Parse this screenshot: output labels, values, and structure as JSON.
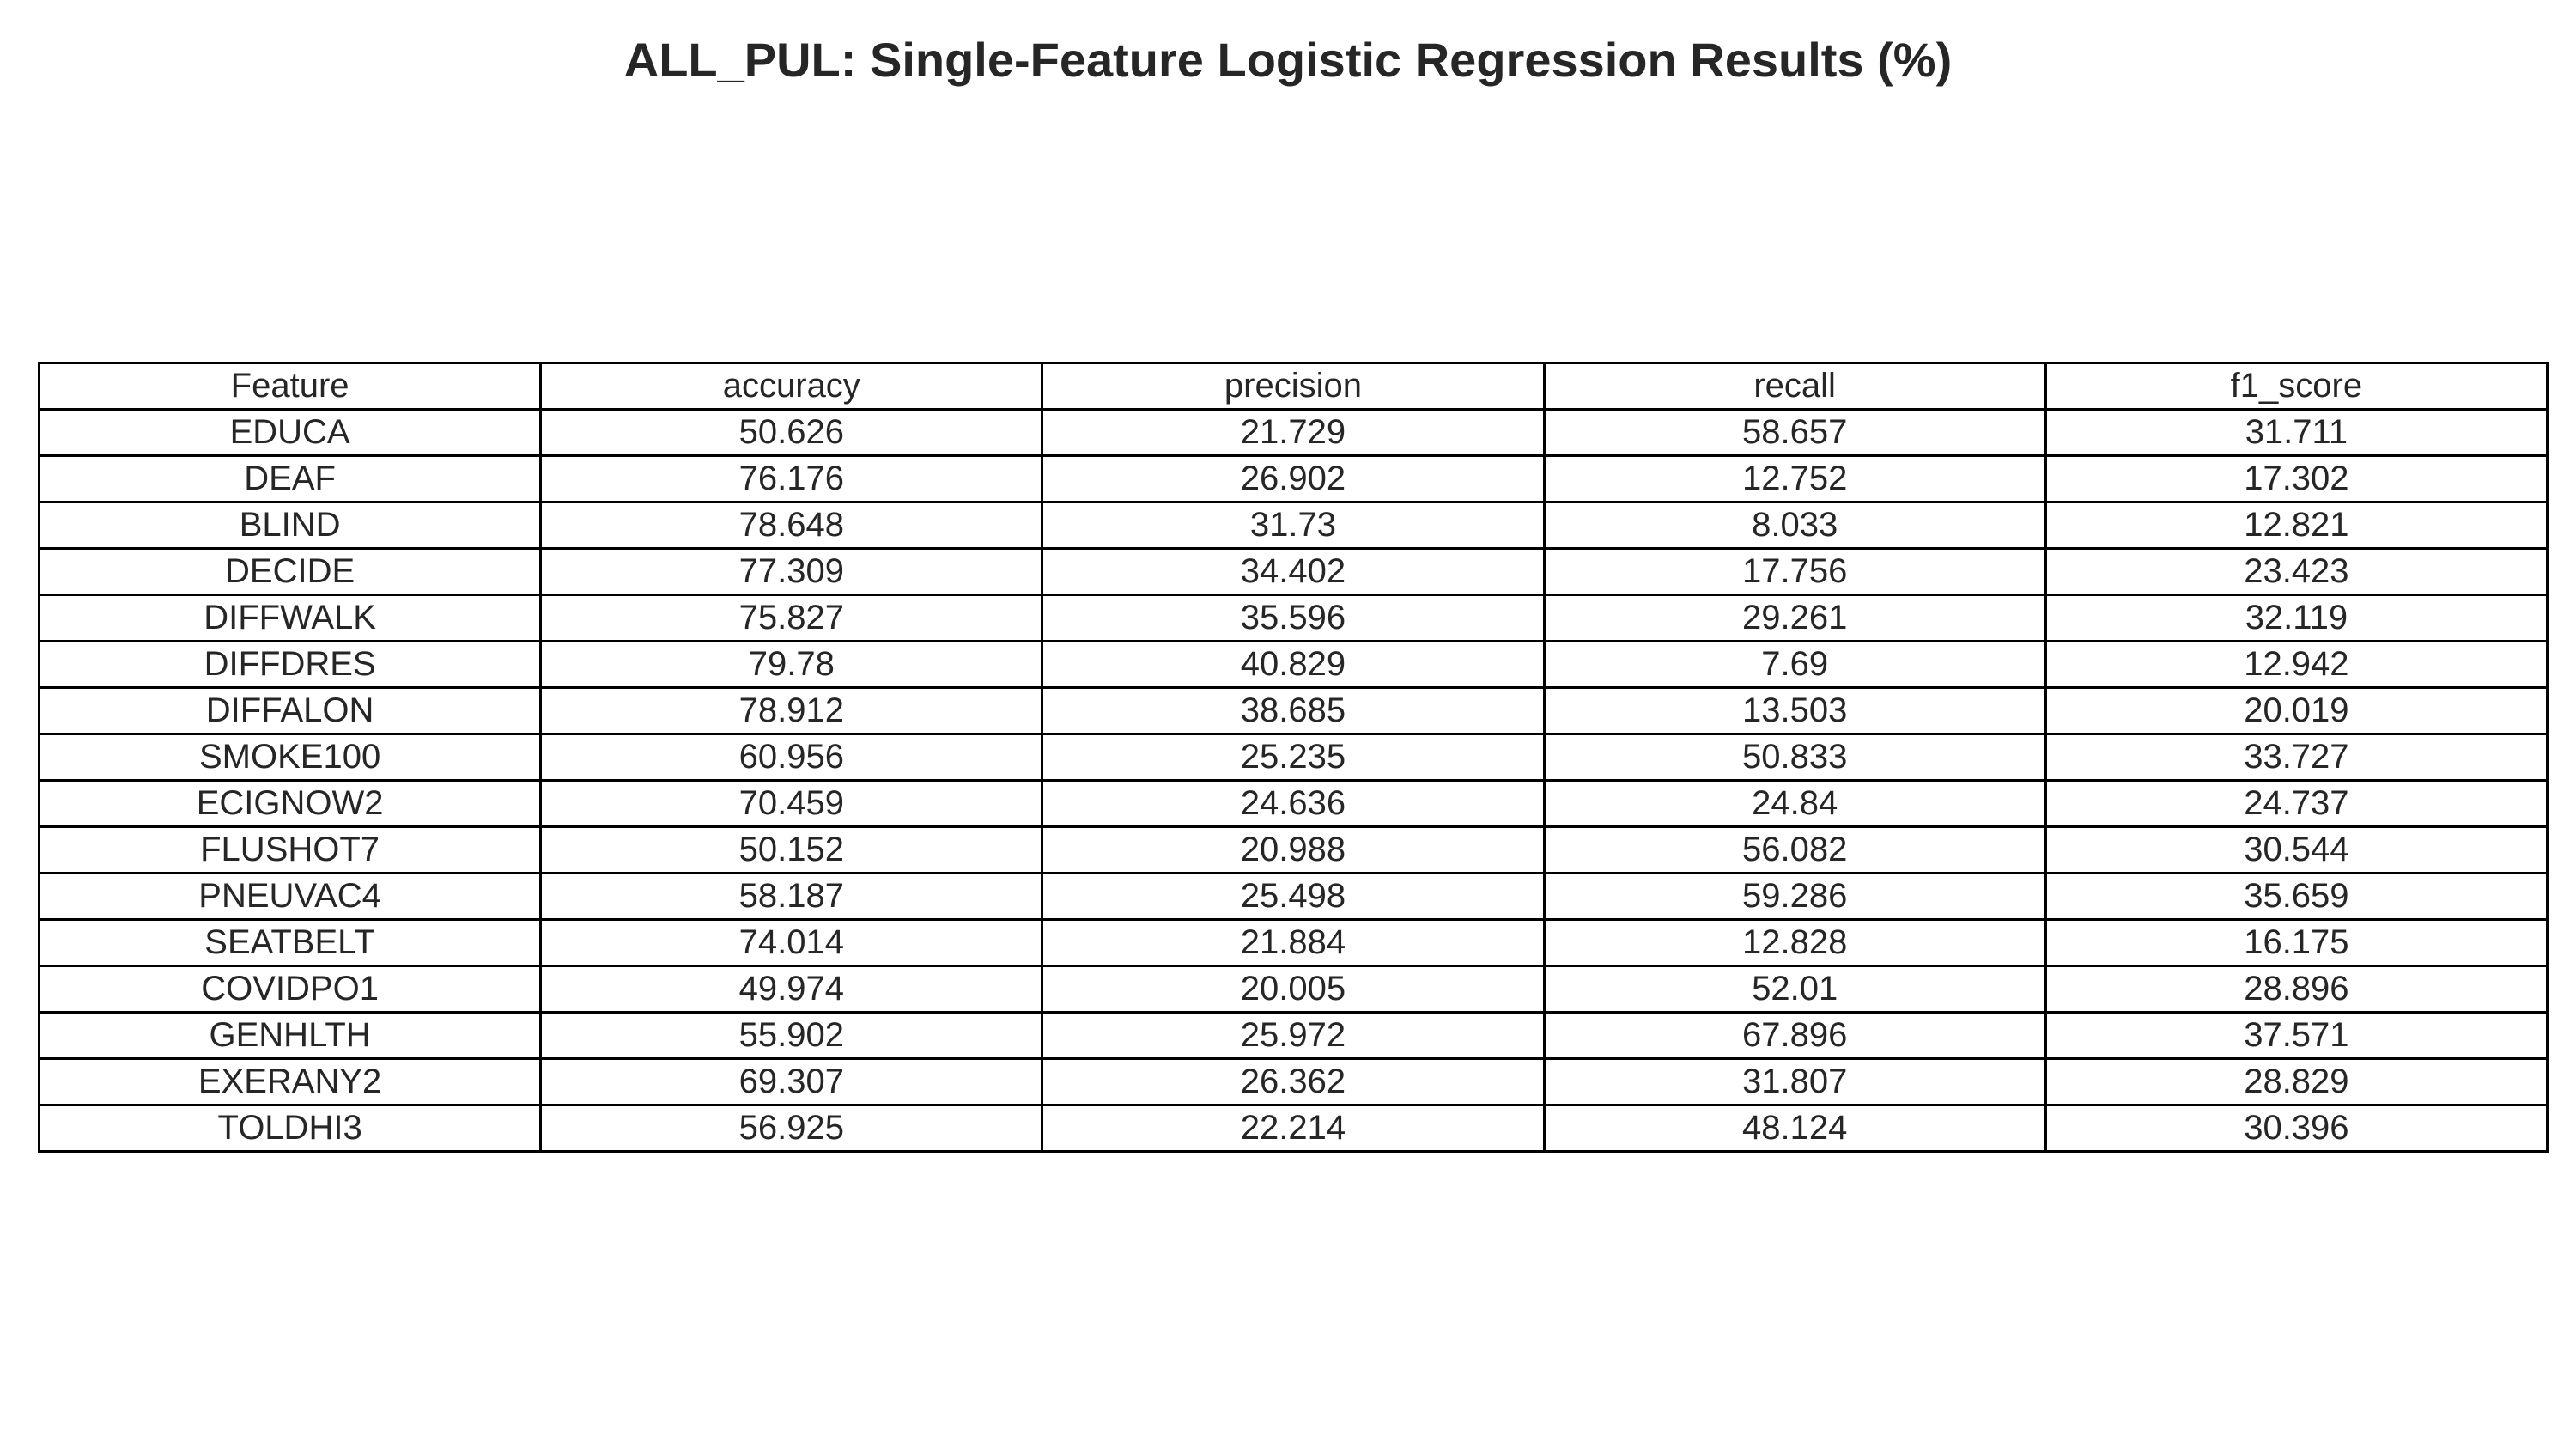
{
  "chart_data": {
    "type": "table",
    "title": "ALL_PUL: Single-Feature Logistic Regression Results (%)",
    "columns": [
      "Feature",
      "accuracy",
      "precision",
      "recall",
      "f1_score"
    ],
    "rows": [
      [
        "EDUCA",
        "50.626",
        "21.729",
        "58.657",
        "31.711"
      ],
      [
        "DEAF",
        "76.176",
        "26.902",
        "12.752",
        "17.302"
      ],
      [
        "BLIND",
        "78.648",
        "31.73",
        "8.033",
        "12.821"
      ],
      [
        "DECIDE",
        "77.309",
        "34.402",
        "17.756",
        "23.423"
      ],
      [
        "DIFFWALK",
        "75.827",
        "35.596",
        "29.261",
        "32.119"
      ],
      [
        "DIFFDRES",
        "79.78",
        "40.829",
        "7.69",
        "12.942"
      ],
      [
        "DIFFALON",
        "78.912",
        "38.685",
        "13.503",
        "20.019"
      ],
      [
        "SMOKE100",
        "60.956",
        "25.235",
        "50.833",
        "33.727"
      ],
      [
        "ECIGNOW2",
        "70.459",
        "24.636",
        "24.84",
        "24.737"
      ],
      [
        "FLUSHOT7",
        "50.152",
        "20.988",
        "56.082",
        "30.544"
      ],
      [
        "PNEUVAC4",
        "58.187",
        "25.498",
        "59.286",
        "35.659"
      ],
      [
        "SEATBELT",
        "74.014",
        "21.884",
        "12.828",
        "16.175"
      ],
      [
        "COVIDPO1",
        "49.974",
        "20.005",
        "52.01",
        "28.896"
      ],
      [
        "GENHLTH",
        "55.902",
        "25.972",
        "67.896",
        "37.571"
      ],
      [
        "EXERANY2",
        "69.307",
        "26.362",
        "31.807",
        "28.829"
      ],
      [
        "TOLDHI3",
        "56.925",
        "22.214",
        "48.124",
        "30.396"
      ]
    ],
    "border_color": "#000000",
    "text_color": "#262626",
    "background": "#ffffff"
  }
}
